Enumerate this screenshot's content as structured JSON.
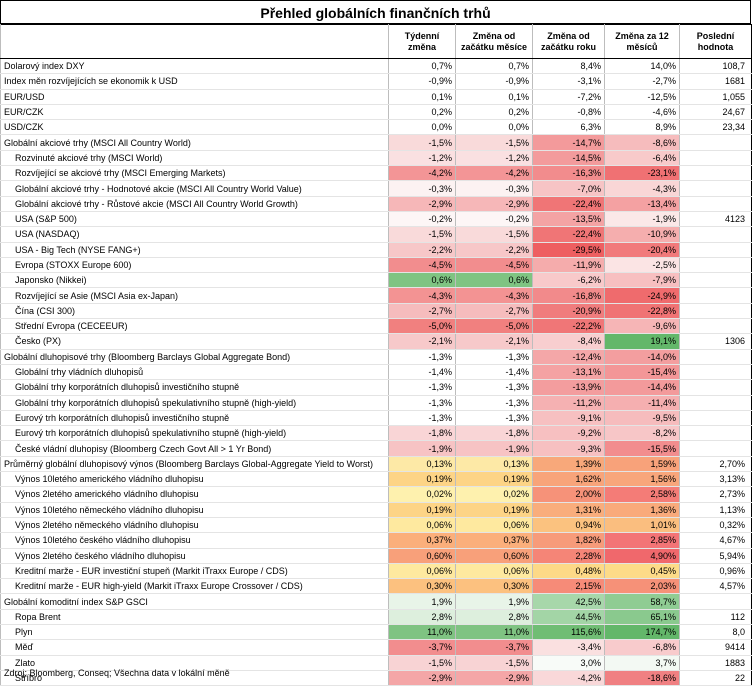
{
  "title": "Přehled globálních finančních trhů",
  "headers": [
    "",
    "Týdenní změna",
    "Změna od začátku měsíce",
    "Změna od začátku roku",
    "Změna za 12 měsíců",
    "Poslední hodnota"
  ],
  "rows": [
    {
      "label": "Dolarový index DXY",
      "vals": [
        "0,7%",
        "0,7%",
        "8,4%",
        "14,0%",
        "108,7"
      ],
      "bg": [
        "",
        "",
        "",
        "",
        ""
      ],
      "grp": true,
      "ind": false
    },
    {
      "label": "Index měn rozvíjejících se ekonomik k USD",
      "vals": [
        "-0,9%",
        "-0,9%",
        "-3,1%",
        "-2,7%",
        "1681"
      ],
      "bg": [
        "",
        "",
        "",
        "",
        ""
      ],
      "grp": false,
      "ind": false
    },
    {
      "label": "EUR/USD",
      "vals": [
        "0,1%",
        "0,1%",
        "-7,2%",
        "-12,5%",
        "1,055"
      ],
      "bg": [
        "",
        "",
        "",
        "",
        ""
      ],
      "grp": false,
      "ind": false
    },
    {
      "label": "EUR/CZK",
      "vals": [
        "0,2%",
        "0,2%",
        "-0,8%",
        "-4,6%",
        "24,67"
      ],
      "bg": [
        "",
        "",
        "",
        "",
        ""
      ],
      "grp": false,
      "ind": false
    },
    {
      "label": "USD/CZK",
      "vals": [
        "0,0%",
        "0,0%",
        "6,3%",
        "8,9%",
        "23,34"
      ],
      "bg": [
        "",
        "",
        "",
        "",
        ""
      ],
      "grp": false,
      "ind": false
    },
    {
      "label": "Globální akciové trhy (MSCI All Country World)",
      "vals": [
        "-1,5%",
        "-1,5%",
        "-14,7%",
        "-8,6%",
        ""
      ],
      "bg": [
        "#f9dada",
        "#f9dada",
        "#f39a9b",
        "#f6bcbd",
        ""
      ],
      "grp": true,
      "ind": false
    },
    {
      "label": "Rozvinuté akciové trhy (MSCI World)",
      "vals": [
        "-1,2%",
        "-1,2%",
        "-14,5%",
        "-6,4%",
        ""
      ],
      "bg": [
        "#fae0e1",
        "#fae0e1",
        "#f39b9c",
        "#f8caca",
        ""
      ],
      "grp": false,
      "ind": true
    },
    {
      "label": "Rozvíjející se akciové trhy (MSCI Emerging Markets)",
      "vals": [
        "-4,2%",
        "-4,2%",
        "-16,3%",
        "-23,1%",
        ""
      ],
      "bg": [
        "#f39596",
        "#f39596",
        "#f28c8d",
        "#f07173",
        ""
      ],
      "grp": false,
      "ind": true
    },
    {
      "label": "Globální akciové trhy - Hodnotové akcie (MSCI All Country World Value)",
      "vals": [
        "-0,3%",
        "-0,3%",
        "-7,0%",
        "-4,3%",
        ""
      ],
      "bg": [
        "#fcf2f2",
        "#fcf2f2",
        "#f7c4c5",
        "#f9d6d6",
        ""
      ],
      "grp": false,
      "ind": true
    },
    {
      "label": "Globální akciové trhy - Růstové akcie (MSCI All Country World Growth)",
      "vals": [
        "-2,9%",
        "-2,9%",
        "-22,4%",
        "-13,4%",
        ""
      ],
      "bg": [
        "#f6b7b8",
        "#f6b7b8",
        "#f07576",
        "#f4a1a2",
        ""
      ],
      "grp": false,
      "ind": true
    },
    {
      "label": "USA (S&P 500)",
      "vals": [
        "-0,2%",
        "-0,2%",
        "-13,5%",
        "-1,9%",
        "4123"
      ],
      "bg": [
        "#fdf6f6",
        "#fdf6f6",
        "#f4a3a4",
        "#fbe8e8",
        ""
      ],
      "grp": false,
      "ind": true
    },
    {
      "label": "USA (NASDAQ)",
      "vals": [
        "-1,5%",
        "-1,5%",
        "-22,4%",
        "-10,9%",
        ""
      ],
      "bg": [
        "#f9dada",
        "#f9dada",
        "#f07576",
        "#f5aeae",
        ""
      ],
      "grp": false,
      "ind": true
    },
    {
      "label": "USA - Big Tech (NYSE FANG+)",
      "vals": [
        "-2,2%",
        "-2,2%",
        "-29,5%",
        "-20,4%",
        ""
      ],
      "bg": [
        "#f7c7c8",
        "#f7c7c8",
        "#ee5f61",
        "#f17a7b",
        ""
      ],
      "grp": false,
      "ind": true
    },
    {
      "label": "Evropa (STOXX Europe 600)",
      "vals": [
        "-4,5%",
        "-4,5%",
        "-11,9%",
        "-2,5%",
        ""
      ],
      "bg": [
        "#f28d8e",
        "#f28d8e",
        "#f5acac",
        "#fbe4e4",
        ""
      ],
      "grp": false,
      "ind": true
    },
    {
      "label": "Japonsko (Nikkei)",
      "vals": [
        "0,6%",
        "0,6%",
        "-6,2%",
        "-7,9%",
        ""
      ],
      "bg": [
        "#7fc482",
        "#7fc482",
        "#f8c9ca",
        "#f7bfc0",
        ""
      ],
      "grp": false,
      "ind": true
    },
    {
      "label": "Rozvíjející se Asie (MSCI Asia ex-Japan)",
      "vals": [
        "-4,3%",
        "-4,3%",
        "-16,8%",
        "-24,9%",
        ""
      ],
      "bg": [
        "#f39393",
        "#f39393",
        "#f28a8b",
        "#ef6b6d",
        ""
      ],
      "grp": false,
      "ind": true
    },
    {
      "label": "Čína (CSI 300)",
      "vals": [
        "-2,7%",
        "-2,7%",
        "-20,9%",
        "-22,8%",
        ""
      ],
      "bg": [
        "#f6bcbd",
        "#f6bcbd",
        "#f07c7d",
        "#f07374",
        ""
      ],
      "grp": false,
      "ind": true
    },
    {
      "label": "Střední Evropa (CECEEUR)",
      "vals": [
        "-5,0%",
        "-5,0%",
        "-22,2%",
        "-9,6%",
        ""
      ],
      "bg": [
        "#f1807f",
        "#f1807f",
        "#f07677",
        "#f6b5b6",
        ""
      ],
      "grp": false,
      "ind": true
    },
    {
      "label": "Česko (PX)",
      "vals": [
        "-2,1%",
        "-2,1%",
        "-8,4%",
        "19,1%",
        "1306"
      ],
      "bg": [
        "#f7c9ca",
        "#f7c9ca",
        "#f8cecf",
        "#63b76a",
        ""
      ],
      "grp": false,
      "ind": true
    },
    {
      "label": "Globální dluhopisové trhy (Bloomberg Barclays Global Aggregate Bond)",
      "vals": [
        "-1,3%",
        "-1,3%",
        "-12,4%",
        "-14,0%",
        ""
      ],
      "bg": [
        "",
        "",
        "#f4a7a8",
        "#f39e9f",
        ""
      ],
      "grp": true,
      "ind": false
    },
    {
      "label": "Globální trhy vládních dluhopisů",
      "vals": [
        "-1,4%",
        "-1,4%",
        "-13,1%",
        "-15,4%",
        ""
      ],
      "bg": [
        "",
        "",
        "#f4a2a3",
        "#f39697",
        ""
      ],
      "grp": false,
      "ind": true
    },
    {
      "label": "Globální trhy korporátních dluhopisů investičního stupně",
      "vals": [
        "-1,3%",
        "-1,3%",
        "-13,9%",
        "-14,4%",
        ""
      ],
      "bg": [
        "",
        "",
        "#f39d9e",
        "#f39a9b",
        ""
      ],
      "grp": false,
      "ind": true
    },
    {
      "label": "Globální trhy korporátních dluhopisů spekulativního stupně (high-yield)",
      "vals": [
        "-1,3%",
        "-1,3%",
        "-11,2%",
        "-11,4%",
        ""
      ],
      "bg": [
        "",
        "",
        "#f5b1b2",
        "#f5afb0",
        ""
      ],
      "grp": false,
      "ind": true
    },
    {
      "label": "Eurový trh korporátních dluhopisů investičního stupně",
      "vals": [
        "-1,3%",
        "-1,3%",
        "-9,1%",
        "-9,5%",
        ""
      ],
      "bg": [
        "",
        "",
        "#f7c0c1",
        "#f6bcbd",
        ""
      ],
      "grp": false,
      "ind": true
    },
    {
      "label": "Eurový trh korporátních dluhopisů spekulativního stupně (high-yield)",
      "vals": [
        "-1,8%",
        "-1,8%",
        "-9,2%",
        "-8,2%",
        ""
      ],
      "bg": [
        "#f9d5d6",
        "#f9d5d6",
        "#f7c0c1",
        "#f7c6c7",
        ""
      ],
      "grp": false,
      "ind": true
    },
    {
      "label": "České vládní dluhopisy (Bloomberg Czech Govt All > 1 Yr Bond)",
      "vals": [
        "-1,9%",
        "-1,9%",
        "-9,3%",
        "-15,5%",
        ""
      ],
      "bg": [
        "#f7c3c4",
        "#f7c3c4",
        "#f7c0c1",
        "#f28d8e",
        ""
      ],
      "grp": false,
      "ind": true
    },
    {
      "label": "Průměrný globální dluhopisový výnos (Bloomberg Barclays Global-Aggregate Yield to Worst)",
      "vals": [
        "0,13%",
        "0,13%",
        "1,39%",
        "1,59%",
        "2,70%"
      ],
      "bg": [
        "#fde9a6",
        "#fde9a6",
        "#f8a87a",
        "#f8a27a",
        ""
      ],
      "grp": true,
      "ind": false
    },
    {
      "label": "Výnos 10letého amerického vládního dluhopisu",
      "vals": [
        "0,19%",
        "0,19%",
        "1,62%",
        "1,56%",
        "3,13%"
      ],
      "bg": [
        "#fdd486",
        "#fdd486",
        "#f8a47a",
        "#f8a67b",
        ""
      ],
      "grp": false,
      "ind": true
    },
    {
      "label": "Výnos 2letého amerického vládního dluhopisu",
      "vals": [
        "0,02%",
        "0,02%",
        "2,00%",
        "2,58%",
        "2,73%"
      ],
      "bg": [
        "#fef1ae",
        "#fef1ae",
        "#f69279",
        "#f47c77",
        ""
      ],
      "grp": false,
      "ind": true
    },
    {
      "label": "Výnos 10letého německého vládního dluhopisu",
      "vals": [
        "0,19%",
        "0,19%",
        "1,31%",
        "1,36%",
        "1,13%"
      ],
      "bg": [
        "#fdd486",
        "#fdd486",
        "#f9ad7c",
        "#f9aa7b",
        ""
      ],
      "grp": false,
      "ind": true
    },
    {
      "label": "Výnos 2letého německého vládního dluhopisu",
      "vals": [
        "0,06%",
        "0,06%",
        "0,94%",
        "1,01%",
        "0,32%"
      ],
      "bg": [
        "#fee99f",
        "#fee99f",
        "#fbc27f",
        "#fabe7f",
        ""
      ],
      "grp": false,
      "ind": true
    },
    {
      "label": "Výnos 10letého českého vládního dluhopisu",
      "vals": [
        "0,37%",
        "0,37%",
        "1,82%",
        "2,85%",
        "4,67%"
      ],
      "bg": [
        "#fbaf7b",
        "#fbaf7b",
        "#f79b7a",
        "#f37476",
        ""
      ],
      "grp": false,
      "ind": true
    },
    {
      "label": "Výnos 2letého českého vládního dluhopisu",
      "vals": [
        "0,60%",
        "0,60%",
        "2,28%",
        "4,90%",
        "5,94%"
      ],
      "bg": [
        "#f8a07a",
        "#f8a07a",
        "#f58577",
        "#f0686c",
        ""
      ],
      "grp": false,
      "ind": true
    },
    {
      "label": "Kreditní marže - EUR investiční stupeň (Markit iTraxx Europe / CDS)",
      "vals": [
        "0,06%",
        "0,06%",
        "0,48%",
        "0,45%",
        "0,96%"
      ],
      "bg": [
        "#fee99f",
        "#fee99f",
        "#fdd987",
        "#fddb88",
        ""
      ],
      "grp": false,
      "ind": true
    },
    {
      "label": "Kreditní marže - EUR high-yield (Markit iTraxx Europe Crossover / CDS)",
      "vals": [
        "0,30%",
        "0,30%",
        "2,15%",
        "2,03%",
        "4,57%"
      ],
      "bg": [
        "#fcc17f",
        "#fcc17f",
        "#f68b78",
        "#f69178",
        ""
      ],
      "grp": false,
      "ind": true
    },
    {
      "label": "Globální komoditní index S&P GSCI",
      "vals": [
        "1,9%",
        "1,9%",
        "42,5%",
        "58,7%",
        ""
      ],
      "bg": [
        "#e8f4e8",
        "#e8f4e8",
        "#a7d7aa",
        "#8fcc93",
        ""
      ],
      "grp": true,
      "ind": false
    },
    {
      "label": "Ropa Brent",
      "vals": [
        "2,8%",
        "2,8%",
        "44,5%",
        "65,1%",
        "112"
      ],
      "bg": [
        "#ddefdd",
        "#ddefdd",
        "#a3d5a6",
        "#8ac98e",
        ""
      ],
      "grp": false,
      "ind": true
    },
    {
      "label": "Plyn",
      "vals": [
        "11,0%",
        "11,0%",
        "115,6%",
        "174,7%",
        "8,0"
      ],
      "bg": [
        "#7fc382",
        "#7fc382",
        "#70bd74",
        "#63b76a",
        ""
      ],
      "grp": false,
      "ind": true
    },
    {
      "label": "Měď",
      "vals": [
        "-3,7%",
        "-3,7%",
        "-3,4%",
        "-6,8%",
        "9414"
      ],
      "bg": [
        "#f28d8e",
        "#f28d8e",
        "#fae0e0",
        "#f8cbcc",
        ""
      ],
      "grp": false,
      "ind": true
    },
    {
      "label": "Zlato",
      "vals": [
        "-1,5%",
        "-1,5%",
        "3,0%",
        "3,7%",
        "1883"
      ],
      "bg": [
        "#f8d3d4",
        "#f8d3d4",
        "#f8fbf8",
        "#f3f9f3",
        ""
      ],
      "grp": false,
      "ind": true
    },
    {
      "label": "Stříbro",
      "vals": [
        "-2,9%",
        "-2,9%",
        "-4,2%",
        "-18,6%",
        "22"
      ],
      "bg": [
        "#f4a6a7",
        "#f4a6a7",
        "#f9d8d9",
        "#f08082",
        ""
      ],
      "grp": false,
      "ind": true
    }
  ],
  "footer": "Zdroj: Bloomberg, Conseq; Všechna data v lokální měně"
}
